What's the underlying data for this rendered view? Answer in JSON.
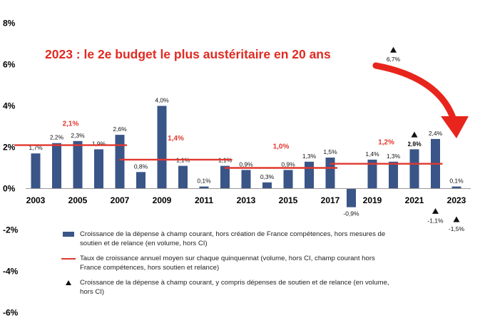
{
  "chart_data": {
    "type": "bar",
    "title": "2023 : le 2e budget le plus austéritaire en 20 ans",
    "categories": [
      "2003",
      "2004",
      "2005",
      "2006",
      "2007",
      "2008",
      "2009",
      "2010",
      "2011",
      "2012",
      "2013",
      "2014",
      "2015",
      "2016",
      "2017",
      "2018",
      "2019",
      "2020",
      "2021",
      "2022",
      "2023"
    ],
    "x_tick_labels": [
      "2003",
      "2005",
      "2007",
      "2009",
      "2011",
      "2013",
      "2015",
      "2017",
      "2019",
      "2021",
      "2023"
    ],
    "ylim": [
      -6,
      8
    ],
    "y_ticks": [
      8,
      6,
      4,
      2,
      0,
      -2,
      -4,
      -6
    ],
    "y_tick_labels": [
      "8%",
      "6%",
      "4%",
      "2%",
      "0%",
      "-2%",
      "-4%",
      "-6%"
    ],
    "grid": false,
    "series": [
      {
        "name": "Croissance de la dépense à champ courant, hors création de France compétences, hors mesures de soutien et de relance (en volume, hors CI)",
        "type": "bar",
        "color": "#3a5587",
        "values": [
          1.7,
          2.2,
          2.3,
          1.9,
          2.6,
          0.8,
          4.0,
          1.1,
          0.1,
          1.1,
          0.9,
          0.3,
          0.9,
          1.3,
          1.5,
          -0.9,
          1.4,
          1.3,
          1.9,
          2.4,
          0.1
        ],
        "labels": [
          "1,7%",
          "2,2%",
          "2,3%",
          "1,9%",
          "2,6%",
          "0,8%",
          "4,0%",
          "1,1%",
          "0,1%",
          "1,1%",
          "0,9%",
          "0,3%",
          "0,9%",
          "1,3%",
          "1,5%",
          "-0,9%",
          "1,4%",
          "1,3%",
          "1,9%",
          "2,4%",
          "0,1%"
        ]
      },
      {
        "name": "Taux de croissance annuel moyen sur chaque quinquennat (volume, hors CI, champ courant hors France compétences, hors soutien et relance)",
        "type": "segments",
        "color": "#e0382f",
        "segments": [
          {
            "start": "2003",
            "end": "2007",
            "value": 2.1,
            "label": "2,1%"
          },
          {
            "start": "2008",
            "end": "2012",
            "value": 1.4,
            "label": "1,4%"
          },
          {
            "start": "2013",
            "end": "2017",
            "value": 1.0,
            "label": "1,0%"
          },
          {
            "start": "2018",
            "end": "2022",
            "value": 1.2,
            "label": "1,2%"
          }
        ]
      },
      {
        "name": "Croissance de la dépense à champ courant, y compris dépenses de soutien et de relance (en volume, hors CI)",
        "type": "scatter",
        "marker": "triangle",
        "color": "#111111",
        "points": [
          {
            "x": "2020",
            "y": 6.7,
            "label": "6,7%"
          },
          {
            "x": "2021",
            "y": 2.6,
            "label": "2,6%"
          },
          {
            "x": "2022",
            "y": -1.1,
            "label": "-1,1%"
          },
          {
            "x": "2023",
            "y": -1.5,
            "label": "-1,5%"
          }
        ]
      }
    ],
    "annotation_color": "#e8251c"
  },
  "legend": {
    "items": [
      {
        "label": "Croissance de la dépense à champ courant, hors création de France compétences, hors mesures de soutien et de relance (en volume, hors CI)"
      },
      {
        "label": "Taux de croissance annuel moyen sur chaque quinquennat (volume, hors CI, champ courant hors France compétences, hors soutien et relance)"
      },
      {
        "label": "Croissance de la dépense à champ courant, y compris dépenses de soutien et de relance (en volume, hors CI)"
      }
    ]
  }
}
